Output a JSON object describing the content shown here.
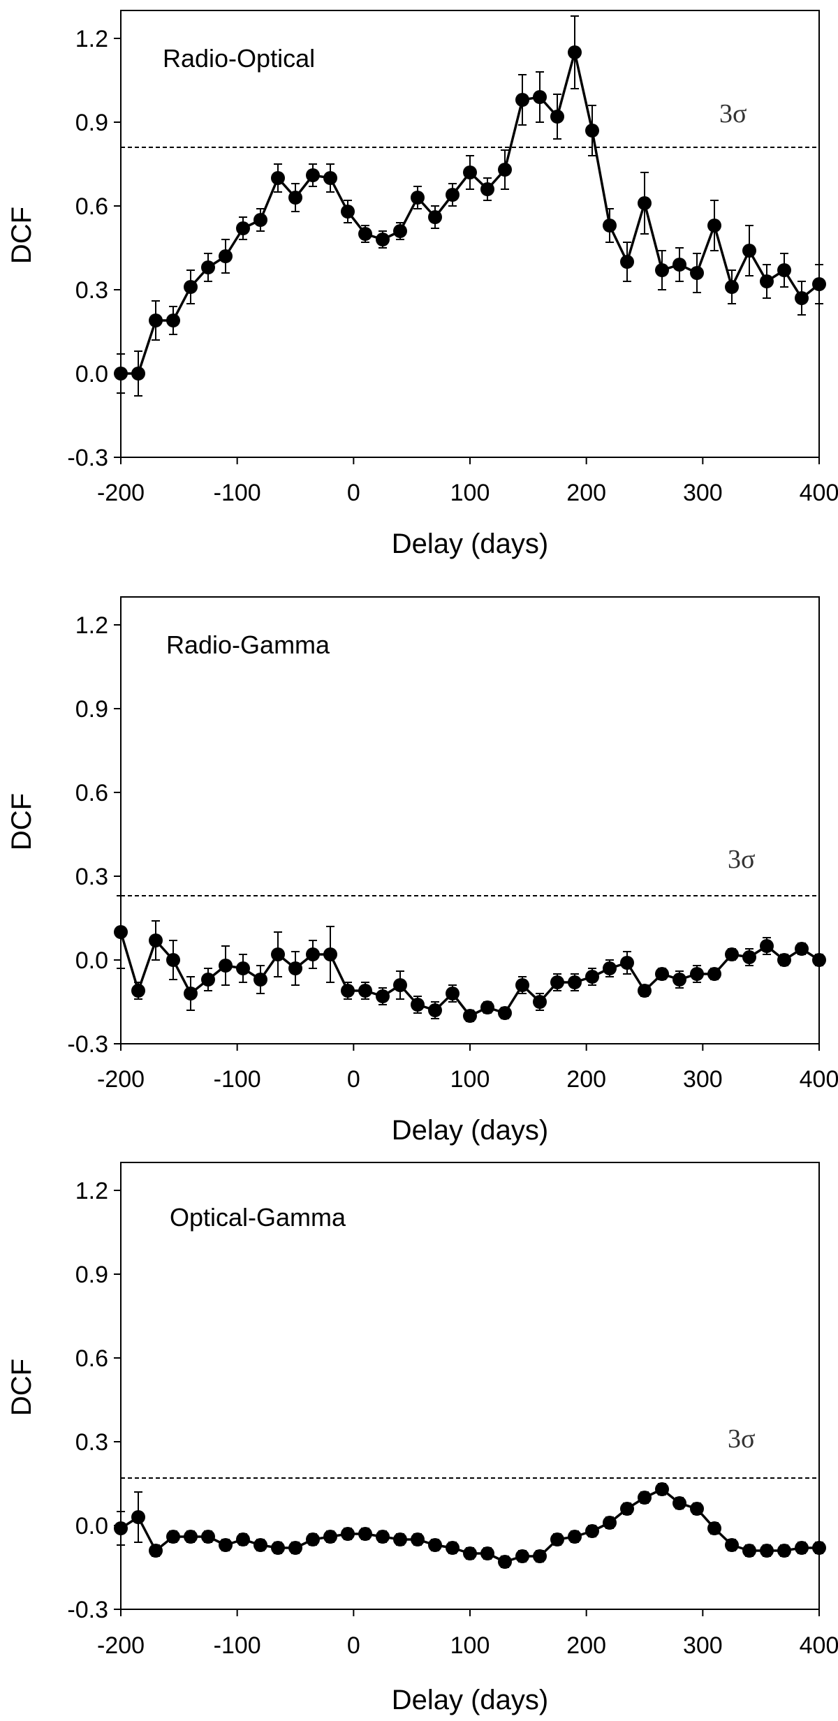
{
  "chart_data": [
    {
      "type": "line",
      "title": "Radio-Optical",
      "xlabel": "Delay (days)",
      "ylabel": "DCF",
      "xlim": [
        -200,
        400
      ],
      "ylim": [
        -0.3,
        1.3
      ],
      "xticks": [
        -200,
        -100,
        0,
        100,
        200,
        300,
        400
      ],
      "yticks": [
        -0.3,
        0.0,
        0.3,
        0.6,
        0.9,
        1.2
      ],
      "xtick_labels": [
        "-200",
        "-100",
        "0",
        "100",
        "200",
        "300",
        "400"
      ],
      "ytick_labels": [
        "-0.3",
        "0.0",
        "0.3",
        "0.6",
        "0.9",
        "1.2"
      ],
      "threshold": {
        "label": "3σ",
        "value": 0.81
      },
      "x": [
        -200,
        -185,
        -170,
        -155,
        -140,
        -125,
        -110,
        -95,
        -80,
        -65,
        -50,
        -35,
        -20,
        -5,
        10,
        25,
        40,
        55,
        70,
        85,
        100,
        115,
        130,
        145,
        160,
        175,
        190,
        205,
        220,
        235,
        250,
        265,
        280,
        295,
        310,
        325,
        340,
        355,
        370,
        385,
        400
      ],
      "values": [
        0.0,
        0.0,
        0.19,
        0.19,
        0.31,
        0.38,
        0.42,
        0.52,
        0.55,
        0.7,
        0.63,
        0.71,
        0.7,
        0.58,
        0.5,
        0.48,
        0.51,
        0.63,
        0.56,
        0.64,
        0.72,
        0.66,
        0.73,
        0.98,
        0.99,
        0.92,
        1.15,
        0.87,
        0.53,
        0.4,
        0.61,
        0.37,
        0.39,
        0.36,
        0.53,
        0.31,
        0.44,
        0.33,
        0.37,
        0.27,
        0.32
      ],
      "errors": [
        0.07,
        0.08,
        0.07,
        0.05,
        0.06,
        0.05,
        0.06,
        0.04,
        0.04,
        0.05,
        0.05,
        0.04,
        0.05,
        0.04,
        0.03,
        0.03,
        0.03,
        0.04,
        0.04,
        0.04,
        0.06,
        0.04,
        0.07,
        0.09,
        0.09,
        0.08,
        0.13,
        0.09,
        0.06,
        0.07,
        0.11,
        0.07,
        0.06,
        0.07,
        0.09,
        0.06,
        0.09,
        0.06,
        0.06,
        0.06,
        0.07
      ]
    },
    {
      "type": "line",
      "title": "Radio-Gamma",
      "xlabel": "Delay (days)",
      "ylabel": "DCF",
      "xlim": [
        -200,
        400
      ],
      "ylim": [
        -0.3,
        1.3
      ],
      "xticks": [
        -200,
        -100,
        0,
        100,
        200,
        300,
        400
      ],
      "yticks": [
        -0.3,
        0.0,
        0.3,
        0.6,
        0.9,
        1.2
      ],
      "xtick_labels": [
        "-200",
        "-100",
        "0",
        "100",
        "200",
        "300",
        "400"
      ],
      "ytick_labels": [
        "-0.3",
        "0.0",
        "0.3",
        "0.6",
        "0.9",
        "1.2"
      ],
      "threshold": {
        "label": "3σ",
        "value": 0.23
      },
      "x": [
        -200,
        -185,
        -170,
        -155,
        -140,
        -125,
        -110,
        -95,
        -80,
        -65,
        -50,
        -35,
        -20,
        -5,
        10,
        25,
        40,
        55,
        70,
        85,
        100,
        115,
        130,
        145,
        160,
        175,
        190,
        205,
        220,
        235,
        250,
        265,
        280,
        295,
        310,
        325,
        340,
        355,
        370,
        385,
        400
      ],
      "values": [
        0.1,
        -0.11,
        0.07,
        0.0,
        -0.12,
        -0.07,
        -0.02,
        -0.03,
        -0.07,
        0.02,
        -0.03,
        0.02,
        0.02,
        -0.11,
        -0.11,
        -0.13,
        -0.09,
        -0.16,
        -0.18,
        -0.12,
        -0.2,
        -0.17,
        -0.19,
        -0.09,
        -0.15,
        -0.08,
        -0.08,
        -0.06,
        -0.03,
        -0.01,
        -0.11,
        -0.05,
        -0.07,
        -0.05,
        -0.05,
        0.02,
        0.01,
        0.05,
        0.0,
        0.04,
        0.0
      ],
      "errors": [
        0.13,
        0.03,
        0.07,
        0.07,
        0.06,
        0.04,
        0.07,
        0.05,
        0.05,
        0.08,
        0.06,
        0.05,
        0.1,
        0.03,
        0.03,
        0.03,
        0.05,
        0.03,
        0.03,
        0.03,
        0.02,
        0.02,
        0.02,
        0.03,
        0.03,
        0.03,
        0.03,
        0.03,
        0.03,
        0.04,
        0.02,
        0.02,
        0.03,
        0.03,
        0.02,
        0.02,
        0.03,
        0.03,
        0.02,
        0.02,
        0.02
      ]
    },
    {
      "type": "line",
      "title": "Optical-Gamma",
      "xlabel": "Delay (days)",
      "ylabel": "DCF",
      "xlim": [
        -200,
        400
      ],
      "ylim": [
        -0.3,
        1.3
      ],
      "xticks": [
        -200,
        -100,
        0,
        100,
        200,
        300,
        400
      ],
      "yticks": [
        -0.3,
        0.0,
        0.3,
        0.6,
        0.9,
        1.2
      ],
      "xtick_labels": [
        "-200",
        "-100",
        "0",
        "100",
        "200",
        "300",
        "400"
      ],
      "ytick_labels": [
        "-0.3",
        "0.0",
        "0.3",
        "0.6",
        "0.9",
        "1.2"
      ],
      "threshold": {
        "label": "3σ",
        "value": 0.17
      },
      "x": [
        -200,
        -185,
        -170,
        -155,
        -140,
        -125,
        -110,
        -95,
        -80,
        -65,
        -50,
        -35,
        -20,
        -5,
        10,
        25,
        40,
        55,
        70,
        85,
        100,
        115,
        130,
        145,
        160,
        175,
        190,
        205,
        220,
        235,
        250,
        265,
        280,
        295,
        310,
        325,
        340,
        355,
        370,
        385,
        400
      ],
      "values": [
        -0.01,
        0.03,
        -0.09,
        -0.04,
        -0.04,
        -0.04,
        -0.07,
        -0.05,
        -0.07,
        -0.08,
        -0.08,
        -0.05,
        -0.04,
        -0.03,
        -0.03,
        -0.04,
        -0.05,
        -0.05,
        -0.07,
        -0.08,
        -0.1,
        -0.1,
        -0.13,
        -0.11,
        -0.11,
        -0.05,
        -0.04,
        -0.02,
        0.01,
        0.06,
        0.1,
        0.13,
        0.08,
        0.06,
        -0.01,
        -0.07,
        -0.09,
        -0.09,
        -0.09,
        -0.08,
        -0.08
      ],
      "errors": [
        0.06,
        0.09,
        0.02,
        0.02,
        0.02,
        0.02,
        0.02,
        0.02,
        0.02,
        0.02,
        0.02,
        0.02,
        0.02,
        0.02,
        0.02,
        0.02,
        0.02,
        0.02,
        0.02,
        0.02,
        0.02,
        0.02,
        0.02,
        0.02,
        0.02,
        0.02,
        0.02,
        0.02,
        0.02,
        0.02,
        0.02,
        0.02,
        0.02,
        0.02,
        0.02,
        0.02,
        0.02,
        0.02,
        0.02,
        0.02,
        0.02
      ]
    }
  ]
}
